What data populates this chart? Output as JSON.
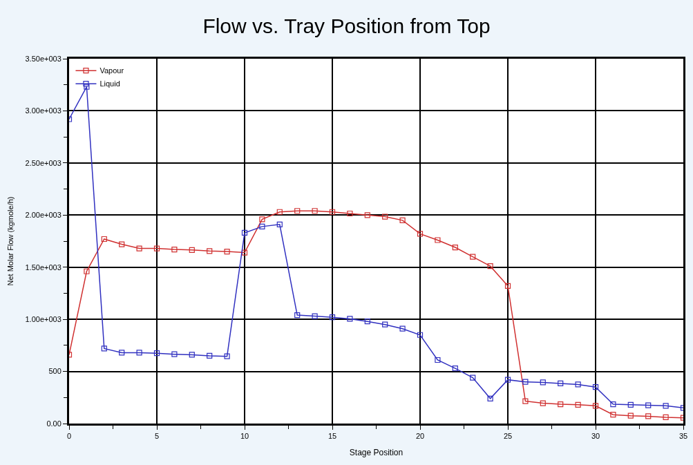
{
  "chart_data": {
    "type": "line",
    "title": "Flow vs. Tray Position from Top",
    "xlabel": "Stage Position",
    "ylabel": "Net Molar Flow (kgmole/h)",
    "x": [
      0,
      1,
      2,
      3,
      4,
      5,
      6,
      7,
      8,
      9,
      10,
      11,
      12,
      13,
      14,
      15,
      16,
      17,
      18,
      19,
      20,
      21,
      22,
      23,
      24,
      25,
      26,
      27,
      28,
      29,
      30,
      31,
      32,
      33,
      34,
      35
    ],
    "series": [
      {
        "name": "Vapour",
        "color": "#d03030",
        "values": [
          660,
          1460,
          1770,
          1720,
          1680,
          1680,
          1670,
          1665,
          1655,
          1650,
          1640,
          1960,
          2030,
          2040,
          2040,
          2030,
          2015,
          2000,
          1985,
          1950,
          1820,
          1760,
          1690,
          1600,
          1510,
          1320,
          215,
          195,
          185,
          180,
          170,
          85,
          75,
          70,
          60,
          55
        ]
      },
      {
        "name": "Liquid",
        "color": "#3030c0",
        "values": [
          2920,
          3230,
          720,
          680,
          680,
          675,
          665,
          660,
          650,
          645,
          1830,
          1890,
          1910,
          1040,
          1030,
          1020,
          1005,
          980,
          950,
          910,
          850,
          610,
          530,
          440,
          240,
          420,
          400,
          395,
          385,
          375,
          350,
          185,
          180,
          175,
          170,
          150
        ]
      }
    ],
    "xlim": [
      0,
      35
    ],
    "xticks": [
      0,
      {
        "value": 2.5,
        "label": null
      },
      5,
      {
        "value": 7.5,
        "label": null
      },
      10,
      {
        "value": 12.5,
        "label": null
      },
      15,
      {
        "value": 17.5,
        "label": null
      },
      20,
      {
        "value": 22.5,
        "label": null
      },
      25,
      {
        "value": 27.5,
        "label": null
      },
      30,
      {
        "value": 32.5,
        "label": null
      },
      35
    ],
    "ylim": [
      0,
      3500
    ],
    "yticks": [
      {
        "value": 0,
        "label": "0.00"
      },
      {
        "value": 250,
        "label": null
      },
      500,
      {
        "value": 750,
        "label": null
      },
      {
        "value": 1000,
        "label": "1.00e+003"
      },
      {
        "value": 1250,
        "label": null
      },
      {
        "value": 1500,
        "label": "1.50e+003"
      },
      {
        "value": 1750,
        "label": null
      },
      {
        "value": 2000,
        "label": "2.00e+003"
      },
      {
        "value": 2250,
        "label": null
      },
      {
        "value": 2500,
        "label": "2.50e+003"
      },
      {
        "value": 2750,
        "label": null
      },
      {
        "value": 3000,
        "label": "3.00e+003"
      },
      {
        "value": 3250,
        "label": null
      },
      {
        "value": 3500,
        "label": "3.50e+003"
      }
    ],
    "grid": true,
    "legend": "top left",
    "marker": "square",
    "line_style": "solid"
  }
}
